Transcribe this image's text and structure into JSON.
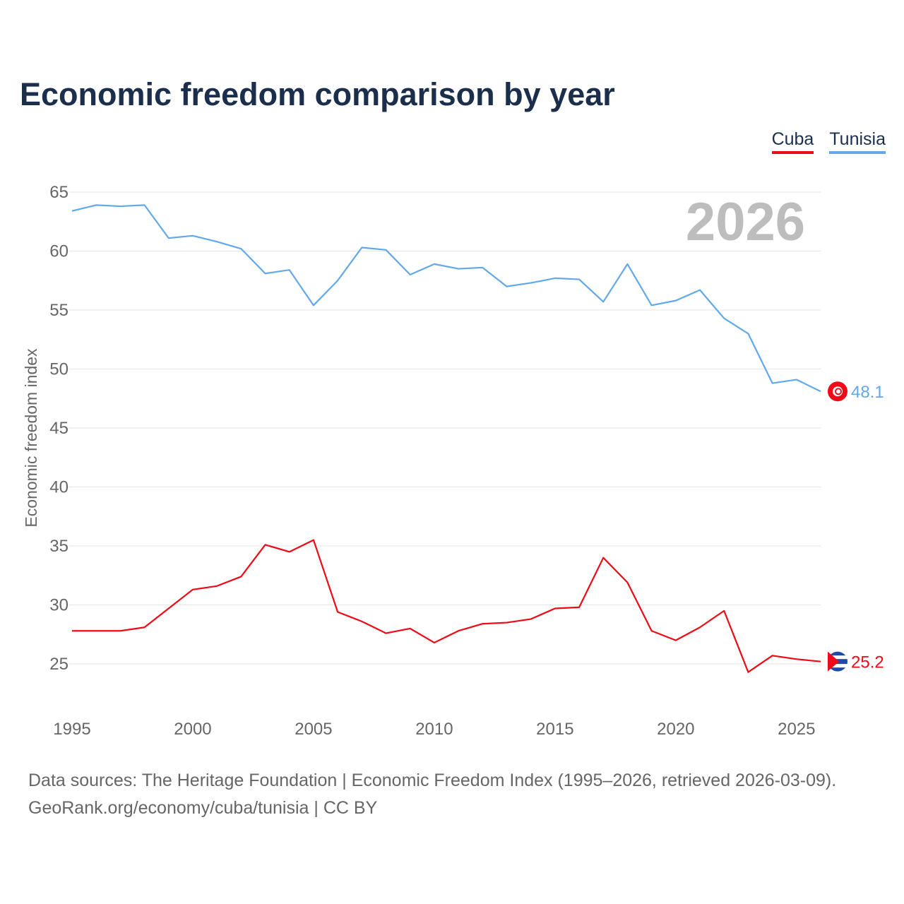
{
  "title": "Economic freedom comparison by year",
  "footer": {
    "line1": "Data sources: The Heritage Foundation | Economic Freedom Index (1995–2026, retrieved 2026-03-09).",
    "line2": "GeoRank.org/economy/cuba/tunisia | CC BY"
  },
  "chart_data": {
    "type": "line",
    "title": "Economic freedom comparison by year",
    "xlabel": "",
    "ylabel": "Economic freedom index",
    "year_label": "2026",
    "xlim": [
      1995,
      2026
    ],
    "ylim": [
      21,
      66
    ],
    "xticks": [
      1995,
      2000,
      2005,
      2010,
      2015,
      2020,
      2025
    ],
    "yticks": [
      25,
      30,
      35,
      40,
      45,
      50,
      55,
      60,
      65
    ],
    "legend_position": "top-right",
    "grid": true,
    "x": [
      1995,
      1996,
      1997,
      1998,
      1999,
      2000,
      2001,
      2002,
      2003,
      2004,
      2005,
      2006,
      2007,
      2008,
      2009,
      2010,
      2011,
      2012,
      2013,
      2014,
      2015,
      2016,
      2017,
      2018,
      2019,
      2020,
      2021,
      2022,
      2023,
      2024,
      2025,
      2026
    ],
    "series": [
      {
        "name": "Cuba",
        "color": "#ee0a16",
        "end_label": "25.2",
        "values": [
          27.8,
          27.8,
          27.8,
          28.1,
          29.7,
          31.3,
          31.6,
          32.4,
          35.1,
          34.5,
          35.5,
          29.4,
          28.6,
          27.6,
          28.0,
          26.8,
          27.8,
          28.4,
          28.5,
          28.8,
          29.7,
          29.8,
          34.0,
          31.9,
          27.8,
          27.0,
          28.1,
          29.5,
          24.3,
          25.7,
          25.4,
          25.2
        ]
      },
      {
        "name": "Tunisia",
        "color": "#62a8ea",
        "end_label": "48.1",
        "values": [
          63.4,
          63.9,
          63.8,
          63.9,
          61.1,
          61.3,
          60.8,
          60.2,
          58.1,
          58.4,
          55.4,
          57.5,
          60.3,
          60.1,
          58.0,
          58.9,
          58.5,
          58.6,
          57.0,
          57.3,
          57.7,
          57.6,
          55.7,
          58.9,
          55.4,
          55.8,
          56.7,
          54.3,
          53.0,
          48.8,
          49.1,
          48.1
        ]
      }
    ]
  }
}
